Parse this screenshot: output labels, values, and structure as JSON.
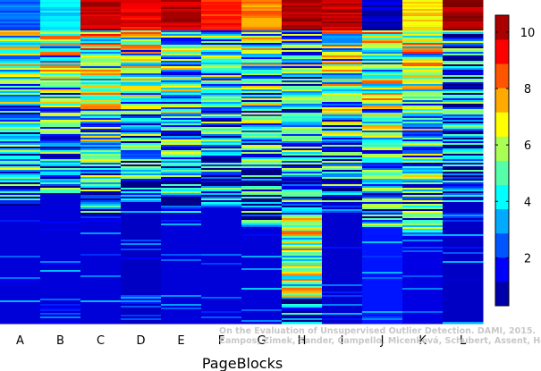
{
  "chart_data": {
    "type": "heatmap",
    "title": "",
    "xlabel": "PageBlocks",
    "ylabel": "",
    "categories": [
      "A",
      "B",
      "C",
      "D",
      "E",
      "F",
      "G",
      "H",
      "I",
      "J",
      "K",
      "L"
    ],
    "colorbar": {
      "min": 0.3,
      "max": 10.6,
      "ticks": [
        2,
        4,
        6,
        8,
        10
      ],
      "colormap": "jet",
      "position": "right"
    },
    "grid": false,
    "column_profiles": [
      {
        "name": "A",
        "top_value": 2.5,
        "upper_value": 4.5,
        "lower_value": 1.2,
        "dark_from": 0.63
      },
      {
        "name": "B",
        "top_value": 4.0,
        "upper_value": 4.8,
        "lower_value": 1.2,
        "dark_from": 0.6
      },
      {
        "name": "C",
        "top_value": 10.0,
        "upper_value": 5.5,
        "lower_value": 1.2,
        "dark_from": 0.66
      },
      {
        "name": "D",
        "top_value": 9.5,
        "upper_value": 4.5,
        "lower_value": 1.0,
        "dark_from": 0.62
      },
      {
        "name": "E",
        "top_value": 10.0,
        "upper_value": 4.5,
        "lower_value": 1.2,
        "dark_from": 0.66
      },
      {
        "name": "F",
        "top_value": 9.0,
        "upper_value": 4.0,
        "lower_value": 1.2,
        "dark_from": 0.63
      },
      {
        "name": "G",
        "top_value": 8.0,
        "upper_value": 4.5,
        "lower_value": 1.2,
        "dark_from": 0.7
      },
      {
        "name": "H",
        "top_value": 10.2,
        "upper_value": 3.5,
        "lower_value": 4.0,
        "dark_from": 0.99
      },
      {
        "name": "I",
        "top_value": 10.0,
        "upper_value": 5.0,
        "lower_value": 1.1,
        "dark_from": 0.62
      },
      {
        "name": "J",
        "top_value": 1.0,
        "upper_value": 5.5,
        "lower_value": 1.8,
        "dark_from": 0.7
      },
      {
        "name": "K",
        "top_value": 7.0,
        "upper_value": 5.5,
        "lower_value": 1.3,
        "dark_from": 0.74
      },
      {
        "name": "L",
        "top_value": 10.3,
        "upper_value": 2.5,
        "lower_value": 1.0,
        "dark_from": 0.62
      }
    ]
  },
  "watermark": {
    "line1": "On the Evaluation of Unsupervised Outlier Detection. DAMI, 2015.",
    "line2": "Campos, Zimek, Sander, Campello, Micenková, Schubert, Assent, Houle"
  }
}
